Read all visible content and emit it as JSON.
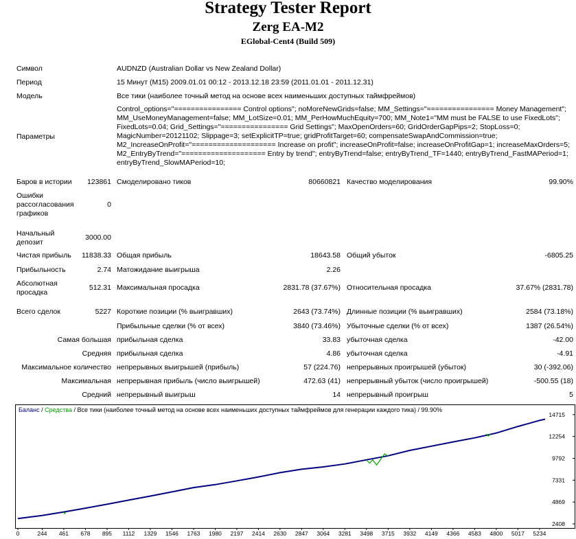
{
  "header": {
    "title": "Strategy Tester Report",
    "ea_name": "Zerg EA-M2",
    "server": "EGlobal-Cent4 (Build 509)"
  },
  "info": {
    "symbol_label": "Символ",
    "symbol_value": "AUDNZD (Australian Dollar vs New Zealand Dollar)",
    "period_label": "Период",
    "period_value": "15 Минут (M15) 2009.01.01 00:12 - 2013.12.18 23:59 (2011.01.01 - 2011.12.31)",
    "model_label": "Модель",
    "model_value": "Все тики (наиболее точный метод на основе всех наименьших доступных таймфреймов)",
    "params_label": "Параметры",
    "params_value": "Control_options=\"================ Control options\"; noMoreNewGrids=false; MM_Settings=\"================ Money Management\"; MM_UseMoneyManagement=false; MM_LotSize=0.01; MM_PerHowMuchEquity=700; MM_Note1=\"MM must be FALSE to use FixedLots\"; FixedLots=0.04; Grid_Settings=\"================ Grid Settings\"; MaxOpenOrders=60; GridOrderGapPips=2; StopLoss=0; MagicNumber=20121102; Slippage=3; setExplicitTP=true; gridProfitTarget=60; compensateSwapAndCommission=true; M2_IncreaseOnProfit=\"==================== Increase on profit\"; increaseOnProfit=false; increaseOnProfitGap=1; increaseMaxOrders=5; M2_EntryByTrend=\"==================== Entry by trend\"; entryByTrend=false; entryByTrend_TF=1440; entryByTrend_FastMAPeriod=1; entryByTrend_SlowMAPeriod=10;"
  },
  "stats": {
    "bars_label": "Баров в истории",
    "bars_value": "123861",
    "ticks_label": "Смоделировано тиков",
    "ticks_value": "80660821",
    "quality_label": "Качество моделирования",
    "quality_value": "99.90%",
    "errors_label": "Ошибки рассогласования графиков",
    "errors_value": "0",
    "deposit_label": "Начальный депозит",
    "deposit_value": "3000.00",
    "net_label": "Чистая прибыль",
    "net_value": "11838.33",
    "gross_profit_label": "Общая прибыль",
    "gross_profit_value": "18643.58",
    "gross_loss_label": "Общий убыток",
    "gross_loss_value": "-6805.25",
    "pf_label": "Прибыльность",
    "pf_value": "2.74",
    "payoff_label": "Матожидание выигрыша",
    "payoff_value": "2.26",
    "abs_dd_label": "Абсолютная просадка",
    "abs_dd_value": "512.31",
    "max_dd_label": "Максимальная просадка",
    "max_dd_value": "2831.78 (37.67%)",
    "rel_dd_label": "Относительная просадка",
    "rel_dd_value": "37.67% (2831.78)",
    "trades_label": "Всего сделок",
    "trades_value": "5227",
    "short_label": "Короткие позиции (% выигравших)",
    "short_value": "2643 (73.74%)",
    "long_label": "Длинные позиции (% выигравших)",
    "long_value": "2584 (73.18%)",
    "profit_trades_label": "Прибыльные сделки (% от всех)",
    "profit_trades_value": "3840 (73.46%)",
    "loss_trades_label": "Убыточные сделки (% от всех)",
    "loss_trades_value": "1387 (26.54%)",
    "largest_label": "Самая большая",
    "largest_profit_label": "прибыльная сделка",
    "largest_profit_value": "33.83",
    "largest_loss_label": "убыточная сделка",
    "largest_loss_value": "-42.00",
    "average_label": "Средняя",
    "average_profit_label": "прибыльная сделка",
    "average_profit_value": "4.86",
    "average_loss_label": "убыточная сделка",
    "average_loss_value": "-4.91",
    "max_count_label": "Максимальное количество",
    "max_cons_wins_label": "непрерывных выигрышей (прибыль)",
    "max_cons_wins_value": "57 (224.76)",
    "max_cons_losses_label": "непрерывных проигрышей (убыток)",
    "max_cons_losses_value": "30 (-392.06)",
    "maximal_label": "Максимальная",
    "max_cons_profit_label": "непрерывная прибыль (число выигрышей)",
    "max_cons_profit_value": "472.63 (41)",
    "max_cons_loss_label": "непрерывный убыток (число проигрышей)",
    "max_cons_loss_value": "-500.55 (18)",
    "avg_label": "Средний",
    "avg_cons_wins_label": "непрерывный выигрыш",
    "avg_cons_wins_value": "14",
    "avg_cons_losses_label": "непрерывный проигрыш",
    "avg_cons_losses_value": "5"
  },
  "chart_data": {
    "type": "line",
    "legend": {
      "balance": "Баланс",
      "sep1": " / ",
      "equity": "Средства",
      "rest": " / Все тики (наиболее точный метод на основе всех наименьших доступных таймфреймов для генерации каждого тика) / 99.90%"
    },
    "x_ticks": [
      0,
      244,
      461,
      678,
      895,
      1112,
      1329,
      1546,
      1763,
      1980,
      2197,
      2414,
      2630,
      2847,
      3064,
      3281,
      3498,
      3715,
      3932,
      4149,
      4366,
      4583,
      4800,
      5017,
      5234
    ],
    "y_ticks": [
      2408,
      4869,
      7331,
      9792,
      12254,
      14715
    ],
    "xlim": [
      0,
      5290
    ],
    "ylim": [
      2408,
      15400
    ],
    "colors": {
      "balance": "#000080",
      "equity": "#00a000"
    },
    "series": [
      {
        "name": "Баланс",
        "x": [
          0,
          244,
          461,
          678,
          895,
          1112,
          1329,
          1546,
          1763,
          1980,
          2197,
          2414,
          2630,
          2847,
          3064,
          3281,
          3498,
          3715,
          3932,
          4149,
          4366,
          4583,
          4800,
          5017,
          5234,
          5290
        ],
        "y": [
          3000,
          3360,
          3750,
          4180,
          4620,
          5080,
          5540,
          6010,
          6500,
          6830,
          7260,
          7700,
          8180,
          8560,
          8830,
          9160,
          9620,
          10080,
          10680,
          11160,
          11640,
          12100,
          12640,
          13380,
          14060,
          14200
        ]
      },
      {
        "name": "Средства",
        "x": [
          461,
          470,
          480,
          3498,
          3530,
          3560,
          3600,
          3640,
          3680,
          3715,
          4700,
          4720,
          4740
        ],
        "y": [
          3750,
          3560,
          3740,
          9600,
          9250,
          9620,
          9050,
          9680,
          10300,
          10050,
          12550,
          12300,
          12520
        ]
      }
    ]
  }
}
